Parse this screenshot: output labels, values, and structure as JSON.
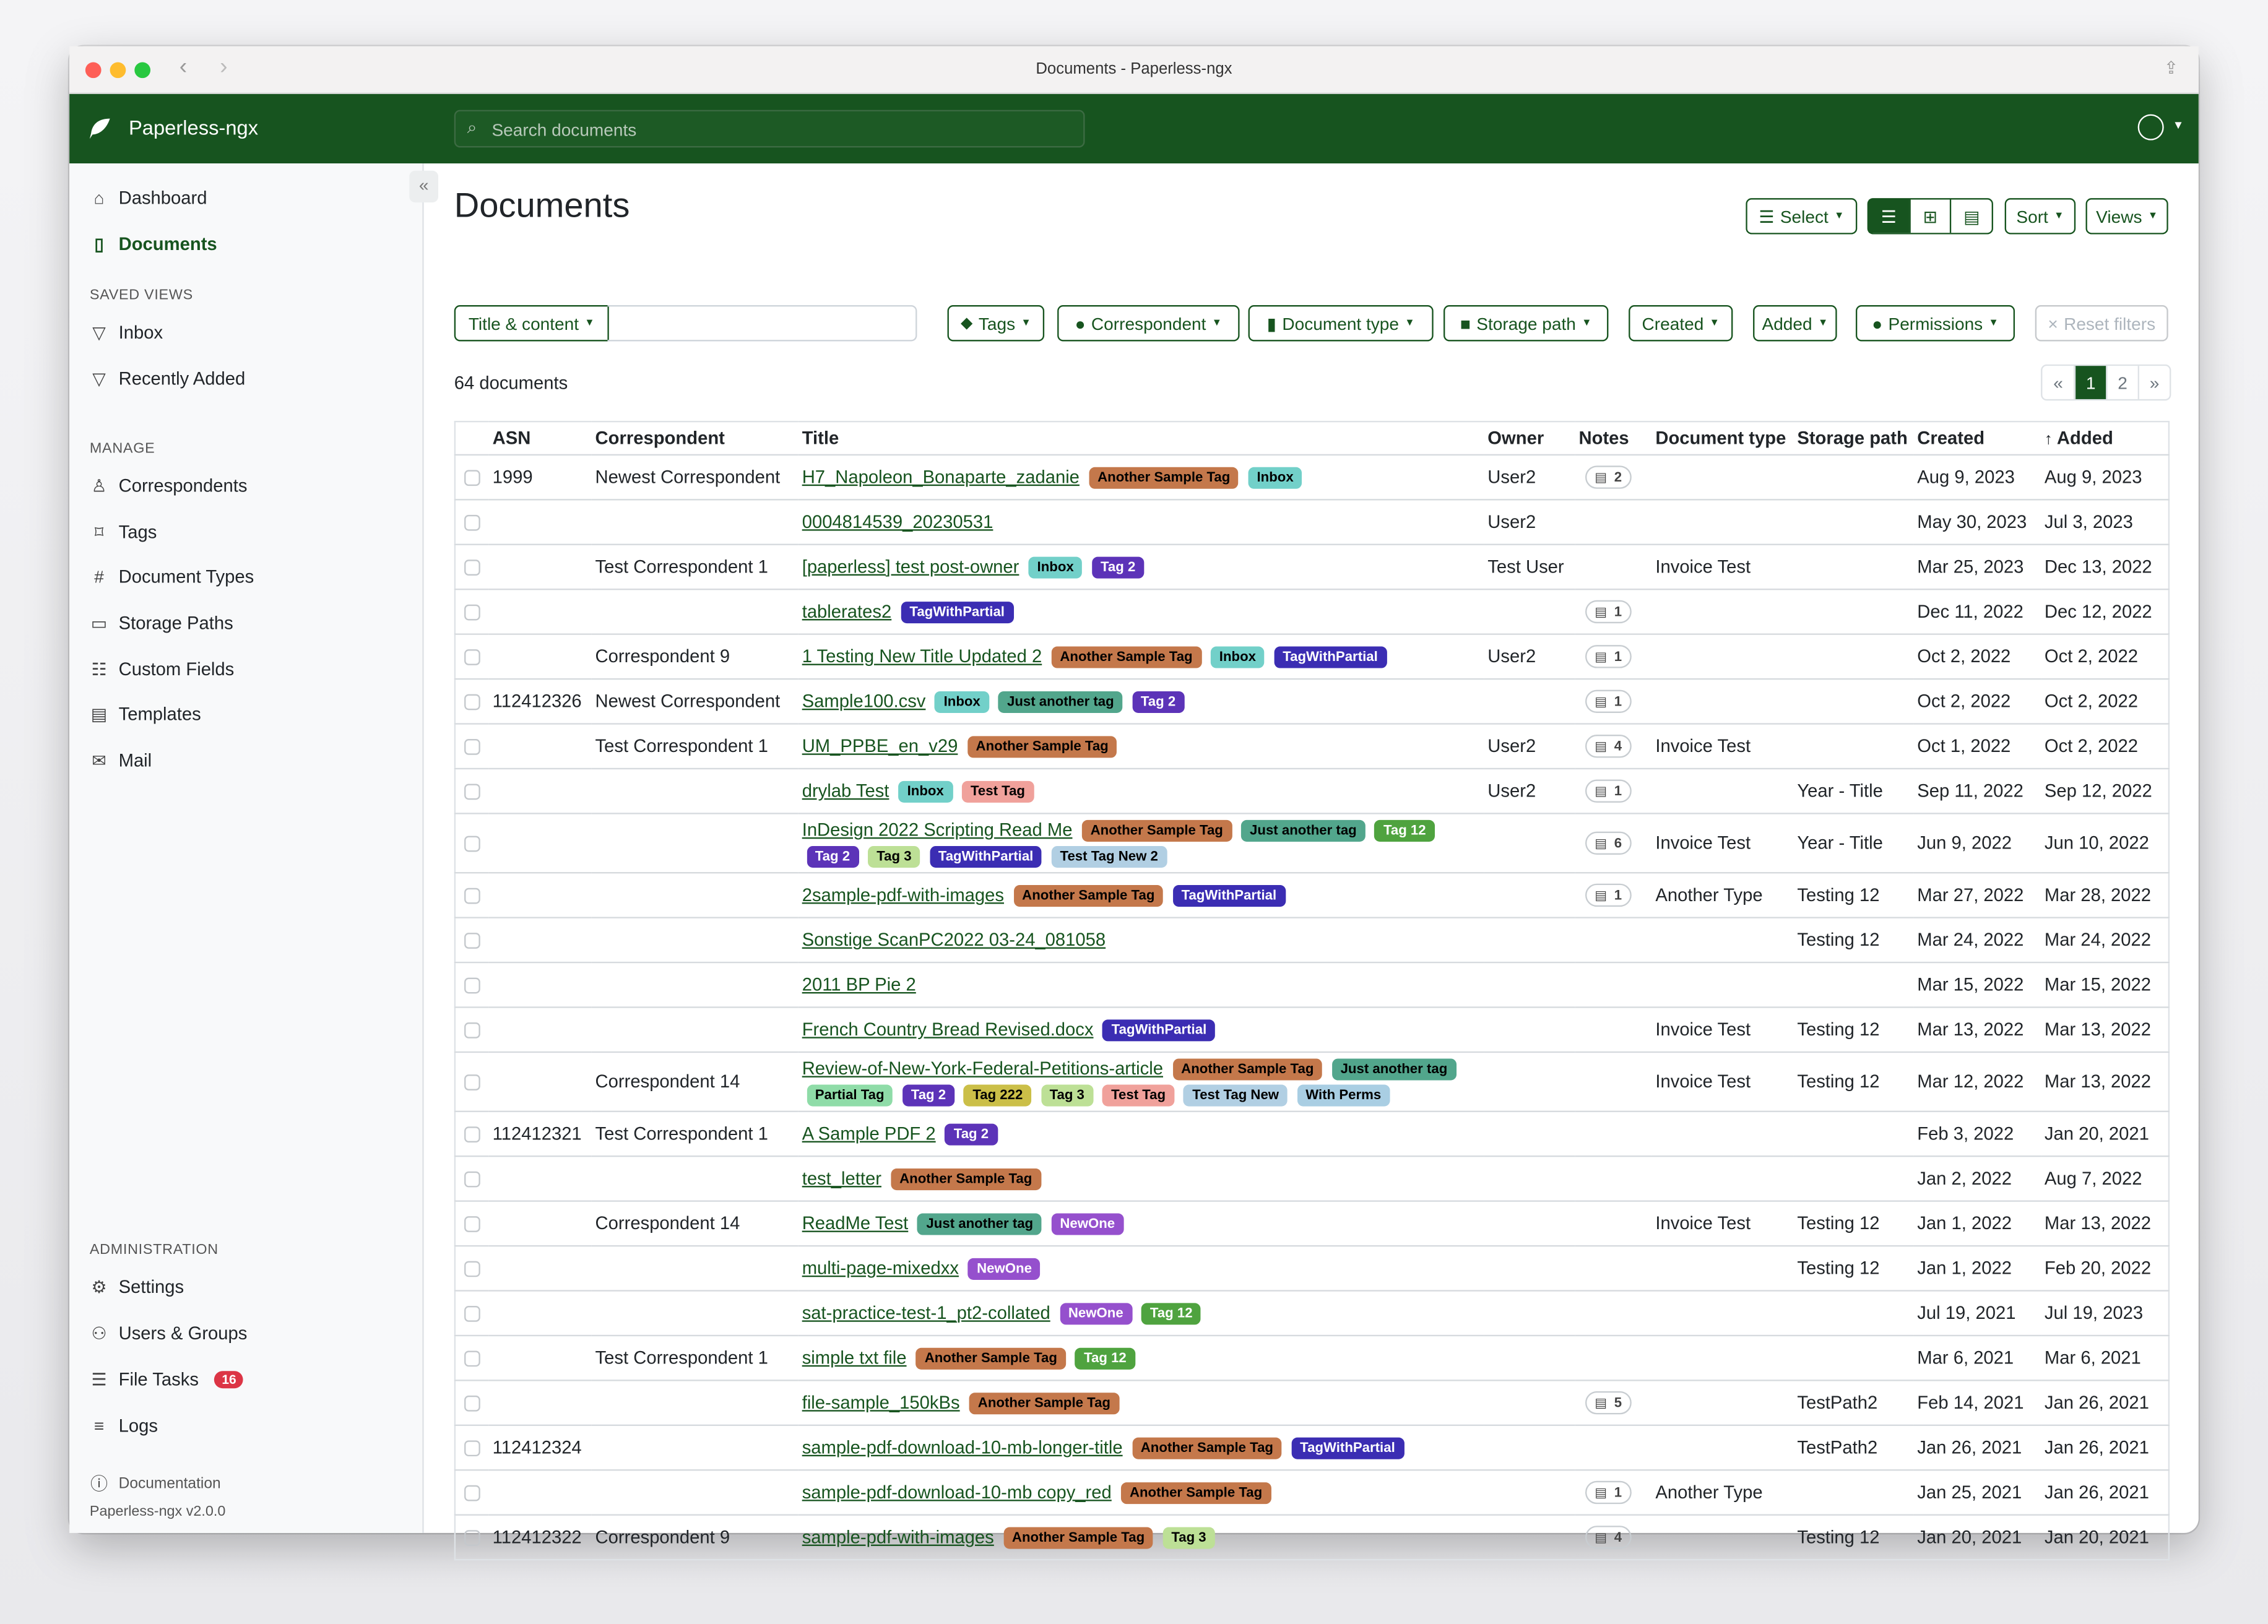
{
  "window": {
    "title": "Documents - Paperless-ngx"
  },
  "header": {
    "brand": "Paperless-ngx",
    "search_placeholder": "Search documents"
  },
  "sidebar": {
    "items": [
      {
        "label": "Dashboard",
        "icon": "house-icon"
      },
      {
        "label": "Documents",
        "icon": "file-icon",
        "active": true
      }
    ],
    "saved_views_heading": "SAVED VIEWS",
    "saved_views": [
      {
        "label": "Inbox",
        "icon": "funnel-icon"
      },
      {
        "label": "Recently Added",
        "icon": "funnel-icon"
      }
    ],
    "manage_heading": "MANAGE",
    "manage": [
      {
        "label": "Correspondents",
        "icon": "person-icon"
      },
      {
        "label": "Tags",
        "icon": "tags-icon"
      },
      {
        "label": "Document Types",
        "icon": "hash-icon"
      },
      {
        "label": "Storage Paths",
        "icon": "folder-icon"
      },
      {
        "label": "Custom Fields",
        "icon": "ui-radios-icon"
      },
      {
        "label": "Templates",
        "icon": "file-text-icon"
      },
      {
        "label": "Mail",
        "icon": "envelope-icon"
      }
    ],
    "admin_heading": "ADMINISTRATION",
    "admin": [
      {
        "label": "Settings",
        "icon": "gear-icon"
      },
      {
        "label": "Users & Groups",
        "icon": "people-icon"
      },
      {
        "label": "File Tasks",
        "icon": "list-task-icon",
        "badge": "16"
      },
      {
        "label": "Logs",
        "icon": "text-left-icon"
      }
    ],
    "documentation": "Documentation",
    "version": "Paperless-ngx v2.0.0"
  },
  "main": {
    "title": "Documents",
    "toolbar": {
      "select": "Select",
      "sort": "Sort",
      "views": "Views"
    },
    "filters": {
      "title_content": "Title & content",
      "tags": "Tags",
      "correspondent": "Correspondent",
      "document_type": "Document type",
      "storage_path": "Storage path",
      "created": "Created",
      "added": "Added",
      "permissions": "Permissions",
      "reset": "Reset filters"
    },
    "count": "64 documents",
    "pagination": {
      "prev": "«",
      "pages": [
        "1",
        "2"
      ],
      "current": "1",
      "next": "»"
    },
    "columns": [
      "ASN",
      "Correspondent",
      "Title",
      "Owner",
      "Notes",
      "Document type",
      "Storage path",
      "Created",
      "Added"
    ],
    "sort_column": "Added"
  },
  "tag_colors": {
    "Another Sample Tag": [
      "#c4784b",
      "#000"
    ],
    "Inbox": [
      "#72d0c9",
      "#000"
    ],
    "Tag 2": [
      "#5c33b8",
      "#fff"
    ],
    "TagWithPartial": [
      "#3b2db3",
      "#fff"
    ],
    "Just another tag": [
      "#52a68c",
      "#000"
    ],
    "Tag 12": [
      "#4fa33f",
      "#fff"
    ],
    "Tag 3": [
      "#bde096",
      "#000"
    ],
    "Test Tag": [
      "#f0a19b",
      "#000"
    ],
    "Test Tag New 2": [
      "#b1cfe3",
      "#000"
    ],
    "Partial Tag": [
      "#8fdca8",
      "#000"
    ],
    "Tag 222": [
      "#cbbf48",
      "#000"
    ],
    "Test Tag New": [
      "#b1cfe3",
      "#000"
    ],
    "With Perms": [
      "#a9cee3",
      "#000"
    ],
    "NewOne": [
      "#9550cd",
      "#fff"
    ]
  },
  "documents": [
    {
      "asn": "1999",
      "correspondent": "Newest Correspondent",
      "title": "H7_Napoleon_Bonaparte_zadanie",
      "tags": [
        "Another Sample Tag",
        "Inbox"
      ],
      "owner": "User2",
      "notes": "2",
      "doctype": "",
      "storage": "",
      "created": "Aug 9, 2023",
      "added": "Aug 9, 2023"
    },
    {
      "asn": "",
      "correspondent": "",
      "title": "0004814539_20230531",
      "tags": [],
      "owner": "User2",
      "notes": "",
      "doctype": "",
      "storage": "",
      "created": "May 30, 2023",
      "added": "Jul 3, 2023"
    },
    {
      "asn": "",
      "correspondent": "Test Correspondent 1",
      "title": "[paperless] test post-owner",
      "tags": [
        "Inbox",
        "Tag 2"
      ],
      "owner": "Test User",
      "notes": "",
      "doctype": "Invoice Test",
      "storage": "",
      "created": "Mar 25, 2023",
      "added": "Dec 13, 2022"
    },
    {
      "asn": "",
      "correspondent": "",
      "title": "tablerates2",
      "tags": [
        "TagWithPartial"
      ],
      "owner": "",
      "notes": "1",
      "doctype": "",
      "storage": "",
      "created": "Dec 11, 2022",
      "added": "Dec 12, 2022"
    },
    {
      "asn": "",
      "correspondent": "Correspondent 9",
      "title": "1 Testing New Title Updated 2",
      "tags": [
        "Another Sample Tag",
        "Inbox",
        "TagWithPartial"
      ],
      "owner": "User2",
      "notes": "1",
      "doctype": "",
      "storage": "",
      "created": "Oct 2, 2022",
      "added": "Oct 2, 2022"
    },
    {
      "asn": "112412326",
      "correspondent": "Newest Correspondent",
      "title": "Sample100.csv",
      "tags": [
        "Inbox",
        "Just another tag",
        "Tag 2"
      ],
      "owner": "",
      "notes": "1",
      "doctype": "",
      "storage": "",
      "created": "Oct 2, 2022",
      "added": "Oct 2, 2022"
    },
    {
      "asn": "",
      "correspondent": "Test Correspondent 1",
      "title": "UM_PPBE_en_v29",
      "tags": [
        "Another Sample Tag"
      ],
      "owner": "User2",
      "notes": "4",
      "doctype": "Invoice Test",
      "storage": "",
      "created": "Oct 1, 2022",
      "added": "Oct 2, 2022"
    },
    {
      "asn": "",
      "correspondent": "",
      "title": "drylab Test",
      "tags": [
        "Inbox",
        "Test Tag"
      ],
      "owner": "User2",
      "notes": "1",
      "doctype": "",
      "storage": "Year - Title",
      "created": "Sep 11, 2022",
      "added": "Sep 12, 2022"
    },
    {
      "asn": "",
      "correspondent": "",
      "title": "InDesign 2022 Scripting Read Me",
      "tags": [
        "Another Sample Tag",
        "Just another tag",
        "Tag 12",
        "Tag 2",
        "Tag 3",
        "TagWithPartial",
        "Test Tag New 2"
      ],
      "owner": "",
      "notes": "6",
      "doctype": "Invoice Test",
      "storage": "Year - Title",
      "created": "Jun 9, 2022",
      "added": "Jun 10, 2022"
    },
    {
      "asn": "",
      "correspondent": "",
      "title": "2sample-pdf-with-images",
      "tags": [
        "Another Sample Tag",
        "TagWithPartial"
      ],
      "owner": "",
      "notes": "1",
      "doctype": "Another Type",
      "storage": "Testing 12",
      "created": "Mar 27, 2022",
      "added": "Mar 28, 2022"
    },
    {
      "asn": "",
      "correspondent": "",
      "title": "Sonstige ScanPC2022 03-24_081058",
      "tags": [],
      "owner": "",
      "notes": "",
      "doctype": "",
      "storage": "Testing 12",
      "created": "Mar 24, 2022",
      "added": "Mar 24, 2022"
    },
    {
      "asn": "",
      "correspondent": "",
      "title": "2011 BP Pie 2",
      "tags": [],
      "owner": "",
      "notes": "",
      "doctype": "",
      "storage": "",
      "created": "Mar 15, 2022",
      "added": "Mar 15, 2022"
    },
    {
      "asn": "",
      "correspondent": "",
      "title": "French Country Bread Revised.docx",
      "tags": [
        "TagWithPartial"
      ],
      "owner": "",
      "notes": "",
      "doctype": "Invoice Test",
      "storage": "Testing 12",
      "created": "Mar 13, 2022",
      "added": "Mar 13, 2022"
    },
    {
      "asn": "",
      "correspondent": "Correspondent 14",
      "title": "Review-of-New-York-Federal-Petitions-article",
      "tags": [
        "Another Sample Tag",
        "Just another tag",
        "Partial Tag",
        "Tag 2",
        "Tag 222",
        "Tag 3",
        "Test Tag",
        "Test Tag New",
        "With Perms"
      ],
      "owner": "",
      "notes": "",
      "doctype": "Invoice Test",
      "storage": "Testing 12",
      "created": "Mar 12, 2022",
      "added": "Mar 13, 2022"
    },
    {
      "asn": "112412321",
      "correspondent": "Test Correspondent 1",
      "title": "A Sample PDF 2",
      "tags": [
        "Tag 2"
      ],
      "owner": "",
      "notes": "",
      "doctype": "",
      "storage": "",
      "created": "Feb 3, 2022",
      "added": "Jan 20, 2021"
    },
    {
      "asn": "",
      "correspondent": "",
      "title": "test_letter",
      "tags": [
        "Another Sample Tag"
      ],
      "owner": "",
      "notes": "",
      "doctype": "",
      "storage": "",
      "created": "Jan 2, 2022",
      "added": "Aug 7, 2022"
    },
    {
      "asn": "",
      "correspondent": "Correspondent 14",
      "title": "ReadMe Test",
      "tags": [
        "Just another tag",
        "NewOne"
      ],
      "owner": "",
      "notes": "",
      "doctype": "Invoice Test",
      "storage": "Testing 12",
      "created": "Jan 1, 2022",
      "added": "Mar 13, 2022"
    },
    {
      "asn": "",
      "correspondent": "",
      "title": "multi-page-mixedxx",
      "tags": [
        "NewOne"
      ],
      "owner": "",
      "notes": "",
      "doctype": "",
      "storage": "Testing 12",
      "created": "Jan 1, 2022",
      "added": "Feb 20, 2022"
    },
    {
      "asn": "",
      "correspondent": "",
      "title": "sat-practice-test-1_pt2-collated",
      "tags": [
        "NewOne",
        "Tag 12"
      ],
      "owner": "",
      "notes": "",
      "doctype": "",
      "storage": "",
      "created": "Jul 19, 2021",
      "added": "Jul 19, 2023"
    },
    {
      "asn": "",
      "correspondent": "Test Correspondent 1",
      "title": "simple txt file",
      "tags": [
        "Another Sample Tag",
        "Tag 12"
      ],
      "owner": "",
      "notes": "",
      "doctype": "",
      "storage": "",
      "created": "Mar 6, 2021",
      "added": "Mar 6, 2021"
    },
    {
      "asn": "",
      "correspondent": "",
      "title": "file-sample_150kBs",
      "tags": [
        "Another Sample Tag"
      ],
      "owner": "",
      "notes": "5",
      "doctype": "",
      "storage": "TestPath2",
      "created": "Feb 14, 2021",
      "added": "Jan 26, 2021"
    },
    {
      "asn": "112412324",
      "correspondent": "",
      "title": "sample-pdf-download-10-mb-longer-title",
      "tags": [
        "Another Sample Tag",
        "TagWithPartial"
      ],
      "owner": "",
      "notes": "",
      "doctype": "",
      "storage": "TestPath2",
      "created": "Jan 26, 2021",
      "added": "Jan 26, 2021"
    },
    {
      "asn": "",
      "correspondent": "",
      "title": "sample-pdf-download-10-mb copy_red",
      "tags": [
        "Another Sample Tag"
      ],
      "owner": "",
      "notes": "1",
      "doctype": "Another Type",
      "storage": "",
      "created": "Jan 25, 2021",
      "added": "Jan 26, 2021"
    },
    {
      "asn": "112412322",
      "correspondent": "Correspondent 9",
      "title": "sample-pdf-with-images",
      "tags": [
        "Another Sample Tag",
        "Tag 3"
      ],
      "owner": "",
      "notes": "4",
      "doctype": "",
      "storage": "Testing 12",
      "created": "Jan 20, 2021",
      "added": "Jan 20, 2021"
    }
  ]
}
